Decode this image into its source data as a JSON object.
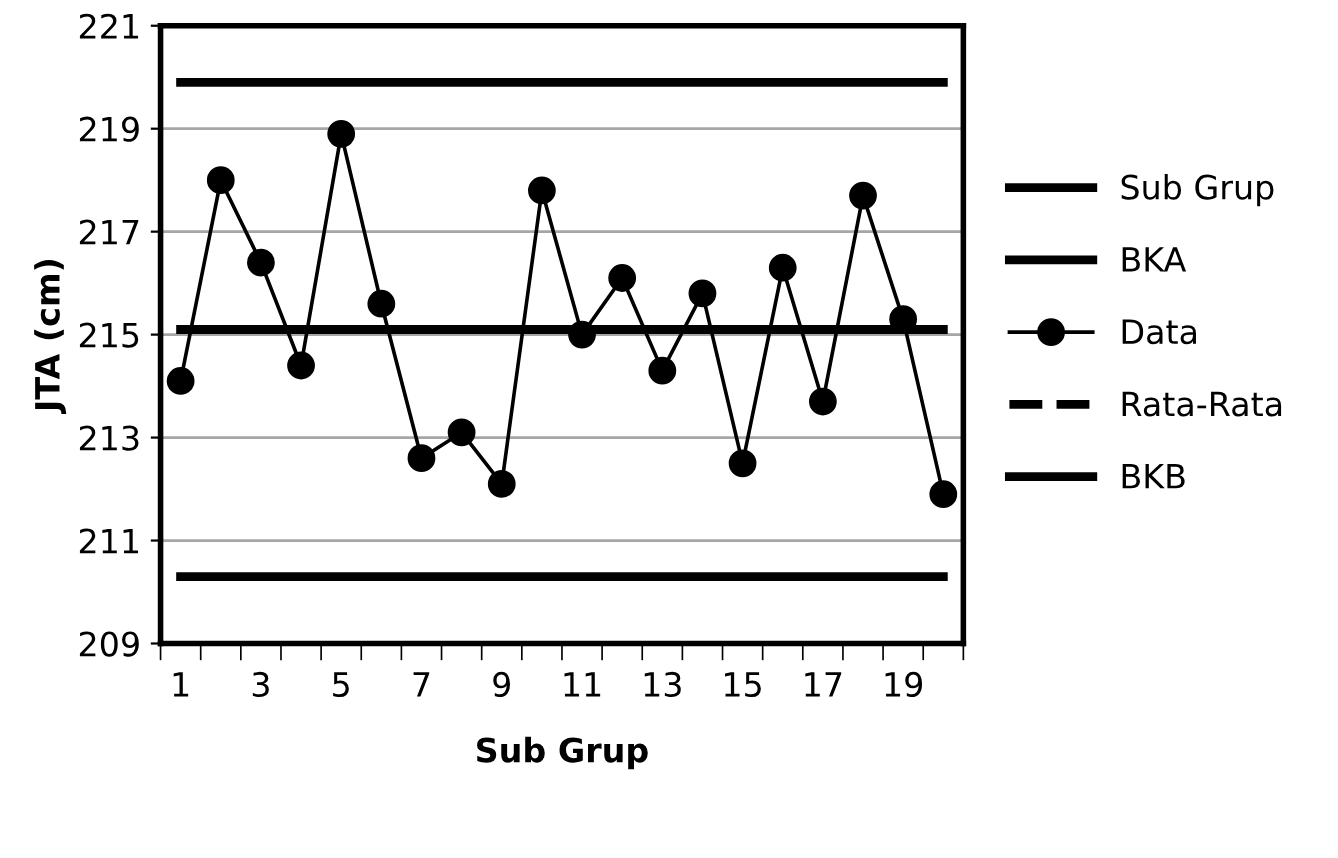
{
  "chart_data": {
    "type": "line",
    "xlabel": "Sub Grup",
    "ylabel": "JTA (cm)",
    "categories": [
      "1",
      null,
      "3",
      null,
      "5",
      null,
      "7",
      null,
      "9",
      null,
      "11",
      null,
      "13",
      null,
      "15",
      null,
      "17",
      null,
      "19",
      null
    ],
    "ylim": [
      209,
      221
    ],
    "yticks": [
      209,
      211,
      213,
      215,
      217,
      219,
      221
    ],
    "grid": "y",
    "legend": "right",
    "series": [
      {
        "name": "Sub Grup",
        "color": "#000000",
        "marker": "none",
        "line_style": "solid",
        "values": [
          219.9,
          219.9,
          219.9,
          219.9,
          219.9,
          219.9,
          219.9,
          219.9,
          219.9,
          219.9,
          219.9,
          219.9,
          219.9,
          219.9,
          219.9,
          219.9,
          219.9,
          219.9,
          219.9,
          219.9
        ]
      },
      {
        "name": "BKA",
        "color": "#000000",
        "marker": "none",
        "line_style": "solid",
        "values": [
          215.1,
          215.1,
          215.1,
          215.1,
          215.1,
          215.1,
          215.1,
          215.1,
          215.1,
          215.1,
          215.1,
          215.1,
          215.1,
          215.1,
          215.1,
          215.1,
          215.1,
          215.1,
          215.1,
          215.1
        ]
      },
      {
        "name": "Data",
        "color": "#000000",
        "marker": "circle",
        "line_style": "solid",
        "values": [
          214.1,
          218.0,
          216.4,
          214.4,
          218.9,
          215.6,
          212.6,
          213.1,
          212.1,
          217.8,
          215.0,
          216.1,
          214.3,
          215.8,
          212.5,
          216.3,
          213.7,
          217.7,
          215.3,
          211.9
        ]
      },
      {
        "name": "Rata-Rata",
        "color": "#000000",
        "marker": "none",
        "line_style": "dashed",
        "values": [
          null,
          null,
          null,
          null,
          null,
          null,
          null,
          null,
          null,
          null,
          null,
          null,
          null,
          null,
          null,
          null,
          null,
          null,
          null,
          null
        ]
      },
      {
        "name": "BKB",
        "color": "#000000",
        "marker": "none",
        "line_style": "solid",
        "values": [
          210.3,
          210.3,
          210.3,
          210.3,
          210.3,
          210.3,
          210.3,
          210.3,
          210.3,
          210.3,
          210.3,
          210.3,
          210.3,
          210.3,
          210.3,
          210.3,
          210.3,
          210.3,
          210.3,
          210.3
        ]
      }
    ]
  }
}
